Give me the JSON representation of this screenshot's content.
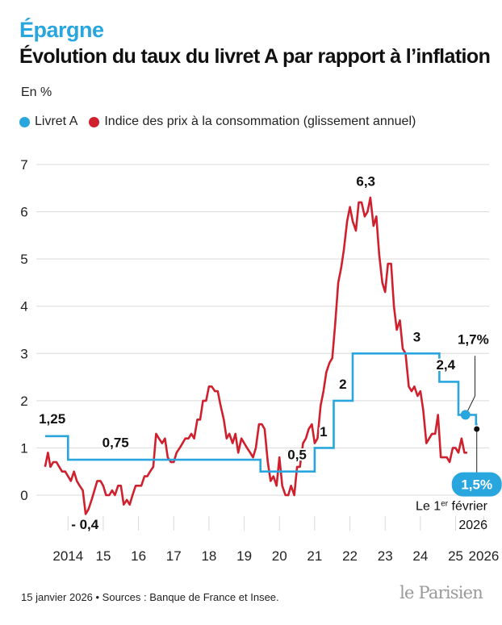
{
  "header": {
    "kicker": "Épargne",
    "title": "Évolution du taux du livret A par rapport à l’inflation",
    "unit_label": "En %"
  },
  "legend": {
    "items": [
      {
        "label": "Livret A",
        "color": "#2aa6df"
      },
      {
        "label": "Indice des prix à la consommation (glissement annuel)",
        "color": "#d0202e"
      }
    ]
  },
  "chart_data": {
    "type": "line",
    "title": "Évolution du taux du livret A par rapport à l’inflation",
    "ylabel": "En %",
    "xlabel": "",
    "ylim": [
      -0.95,
      7.1
    ],
    "xlim": [
      2013.6,
      2026.45
    ],
    "y_ticks": [
      "0",
      "1",
      "2",
      "3",
      "4",
      "5",
      "6",
      "7"
    ],
    "x_ticks": [
      {
        "x": 2014.5,
        "label": "2014"
      },
      {
        "x": 2015.5,
        "label": "15"
      },
      {
        "x": 2016.5,
        "label": "16"
      },
      {
        "x": 2017.5,
        "label": "17"
      },
      {
        "x": 2018.5,
        "label": "18"
      },
      {
        "x": 2019.5,
        "label": "19"
      },
      {
        "x": 2020.5,
        "label": "20"
      },
      {
        "x": 2021.5,
        "label": "21"
      },
      {
        "x": 2022.5,
        "label": "22"
      },
      {
        "x": 2023.5,
        "label": "23"
      },
      {
        "x": 2024.5,
        "label": "24"
      },
      {
        "x": 2025.5,
        "label": "25"
      },
      {
        "x": 2026.3,
        "label": "2026"
      }
    ],
    "series": [
      {
        "name": "Livret A",
        "color": "#2aa6df",
        "step": true,
        "points": [
          [
            2013.85,
            1.25
          ],
          [
            2014.5,
            1.25
          ],
          [
            2014.5,
            0.75
          ],
          [
            2019.96,
            0.75
          ],
          [
            2019.96,
            0.5
          ],
          [
            2021.5,
            0.5
          ],
          [
            2021.5,
            1.0
          ],
          [
            2022.04,
            1.0
          ],
          [
            2022.04,
            2.0
          ],
          [
            2022.58,
            2.0
          ],
          [
            2022.58,
            3.0
          ],
          [
            2025.04,
            3.0
          ],
          [
            2025.04,
            2.4
          ],
          [
            2025.58,
            2.4
          ],
          [
            2025.58,
            1.7
          ],
          [
            2026.08,
            1.7
          ],
          [
            2026.08,
            1.5
          ],
          [
            2026.12,
            1.5
          ]
        ]
      },
      {
        "name": "Indice des prix à la consommation (glissement annuel)",
        "color": "#d0202e",
        "step": false,
        "points": [
          [
            2013.85,
            0.6
          ],
          [
            2013.93,
            0.9
          ],
          [
            2014.0,
            0.6
          ],
          [
            2014.08,
            0.7
          ],
          [
            2014.17,
            0.7
          ],
          [
            2014.25,
            0.6
          ],
          [
            2014.33,
            0.5
          ],
          [
            2014.42,
            0.5
          ],
          [
            2014.5,
            0.4
          ],
          [
            2014.58,
            0.3
          ],
          [
            2014.67,
            0.5
          ],
          [
            2014.75,
            0.3
          ],
          [
            2014.83,
            0.2
          ],
          [
            2014.92,
            0.1
          ],
          [
            2015.0,
            -0.4
          ],
          [
            2015.08,
            -0.3
          ],
          [
            2015.17,
            -0.1
          ],
          [
            2015.25,
            0.1
          ],
          [
            2015.33,
            0.3
          ],
          [
            2015.42,
            0.3
          ],
          [
            2015.5,
            0.2
          ],
          [
            2015.58,
            0.0
          ],
          [
            2015.67,
            0.0
          ],
          [
            2015.75,
            0.1
          ],
          [
            2015.83,
            0.0
          ],
          [
            2015.92,
            0.2
          ],
          [
            2016.0,
            0.2
          ],
          [
            2016.08,
            -0.2
          ],
          [
            2016.17,
            -0.1
          ],
          [
            2016.25,
            -0.2
          ],
          [
            2016.33,
            0.0
          ],
          [
            2016.42,
            0.2
          ],
          [
            2016.5,
            0.2
          ],
          [
            2016.58,
            0.2
          ],
          [
            2016.67,
            0.4
          ],
          [
            2016.75,
            0.4
          ],
          [
            2016.83,
            0.5
          ],
          [
            2016.92,
            0.6
          ],
          [
            2017.0,
            1.3
          ],
          [
            2017.08,
            1.2
          ],
          [
            2017.17,
            1.1
          ],
          [
            2017.25,
            1.2
          ],
          [
            2017.33,
            0.8
          ],
          [
            2017.42,
            0.7
          ],
          [
            2017.5,
            0.7
          ],
          [
            2017.58,
            0.9
          ],
          [
            2017.67,
            1.0
          ],
          [
            2017.75,
            1.1
          ],
          [
            2017.83,
            1.2
          ],
          [
            2017.92,
            1.2
          ],
          [
            2018.0,
            1.3
          ],
          [
            2018.08,
            1.2
          ],
          [
            2018.17,
            1.6
          ],
          [
            2018.25,
            1.6
          ],
          [
            2018.33,
            2.0
          ],
          [
            2018.42,
            2.0
          ],
          [
            2018.5,
            2.3
          ],
          [
            2018.58,
            2.3
          ],
          [
            2018.67,
            2.2
          ],
          [
            2018.75,
            2.2
          ],
          [
            2018.83,
            1.9
          ],
          [
            2018.92,
            1.6
          ],
          [
            2019.0,
            1.2
          ],
          [
            2019.08,
            1.3
          ],
          [
            2019.17,
            1.1
          ],
          [
            2019.25,
            1.3
          ],
          [
            2019.33,
            0.9
          ],
          [
            2019.42,
            1.2
          ],
          [
            2019.5,
            1.1
          ],
          [
            2019.58,
            1.0
          ],
          [
            2019.67,
            0.9
          ],
          [
            2019.75,
            0.8
          ],
          [
            2019.83,
            1.0
          ],
          [
            2019.92,
            1.5
          ],
          [
            2020.0,
            1.5
          ],
          [
            2020.08,
            1.4
          ],
          [
            2020.17,
            0.7
          ],
          [
            2020.25,
            0.3
          ],
          [
            2020.33,
            0.4
          ],
          [
            2020.42,
            0.2
          ],
          [
            2020.5,
            0.8
          ],
          [
            2020.58,
            0.2
          ],
          [
            2020.67,
            0.0
          ],
          [
            2020.75,
            0.0
          ],
          [
            2020.83,
            0.2
          ],
          [
            2020.92,
            0.0
          ],
          [
            2021.0,
            0.6
          ],
          [
            2021.08,
            0.6
          ],
          [
            2021.17,
            1.1
          ],
          [
            2021.25,
            1.2
          ],
          [
            2021.33,
            1.4
          ],
          [
            2021.42,
            1.5
          ],
          [
            2021.5,
            1.1
          ],
          [
            2021.58,
            1.2
          ],
          [
            2021.67,
            1.9
          ],
          [
            2021.75,
            2.2
          ],
          [
            2021.83,
            2.6
          ],
          [
            2021.92,
            2.8
          ],
          [
            2022.0,
            2.9
          ],
          [
            2022.08,
            3.6
          ],
          [
            2022.17,
            4.5
          ],
          [
            2022.25,
            4.8
          ],
          [
            2022.33,
            5.2
          ],
          [
            2022.42,
            5.8
          ],
          [
            2022.5,
            6.1
          ],
          [
            2022.58,
            5.8
          ],
          [
            2022.67,
            5.6
          ],
          [
            2022.75,
            6.2
          ],
          [
            2022.83,
            6.2
          ],
          [
            2022.92,
            5.9
          ],
          [
            2023.0,
            6.0
          ],
          [
            2023.08,
            6.3
          ],
          [
            2023.17,
            5.7
          ],
          [
            2023.25,
            5.9
          ],
          [
            2023.33,
            5.1
          ],
          [
            2023.42,
            4.5
          ],
          [
            2023.5,
            4.3
          ],
          [
            2023.58,
            4.9
          ],
          [
            2023.67,
            4.9
          ],
          [
            2023.75,
            4.0
          ],
          [
            2023.83,
            3.5
          ],
          [
            2023.92,
            3.7
          ],
          [
            2024.0,
            3.1
          ],
          [
            2024.08,
            3.0
          ],
          [
            2024.17,
            2.3
          ],
          [
            2024.25,
            2.2
          ],
          [
            2024.33,
            2.3
          ],
          [
            2024.42,
            2.1
          ],
          [
            2024.5,
            2.2
          ],
          [
            2024.58,
            1.8
          ],
          [
            2024.67,
            1.1
          ],
          [
            2024.75,
            1.2
          ],
          [
            2024.83,
            1.3
          ],
          [
            2024.92,
            1.3
          ],
          [
            2025.0,
            1.7
          ],
          [
            2025.08,
            0.8
          ],
          [
            2025.17,
            0.8
          ],
          [
            2025.25,
            0.8
          ],
          [
            2025.33,
            0.7
          ],
          [
            2025.42,
            1.0
          ],
          [
            2025.5,
            1.0
          ],
          [
            2025.58,
            0.9
          ],
          [
            2025.67,
            1.2
          ],
          [
            2025.75,
            0.9
          ],
          [
            2025.83,
            0.9
          ]
        ]
      }
    ],
    "annotations": [
      {
        "text": "1,25",
        "x": 2014.05,
        "y": 1.52
      },
      {
        "text": "0,75",
        "x": 2015.85,
        "y": 1.02
      },
      {
        "text": "- 0,4",
        "x": 2014.98,
        "y": -0.72
      },
      {
        "text": "0,5",
        "x": 2021.0,
        "y": 0.76
      },
      {
        "text": "1",
        "x": 2021.75,
        "y": 1.25
      },
      {
        "text": "2",
        "x": 2022.3,
        "y": 2.25
      },
      {
        "text": "6,3",
        "x": 2022.95,
        "y": 6.55
      },
      {
        "text": "3",
        "x": 2024.4,
        "y": 3.25
      },
      {
        "text": "2,4",
        "x": 2025.22,
        "y": 2.66
      },
      {
        "text": "1,7%",
        "x": 2026.0,
        "y": 3.2
      }
    ],
    "callouts": {
      "inflation_value": "1,5%",
      "date_prefix": "Le 1",
      "date_superscript": "er",
      "date_suffix": " février",
      "date_year": "2026"
    }
  },
  "footer": {
    "source": "15 janvier 2026 • Sources : Banque de France et Insee.",
    "logo": "le Parisien"
  }
}
